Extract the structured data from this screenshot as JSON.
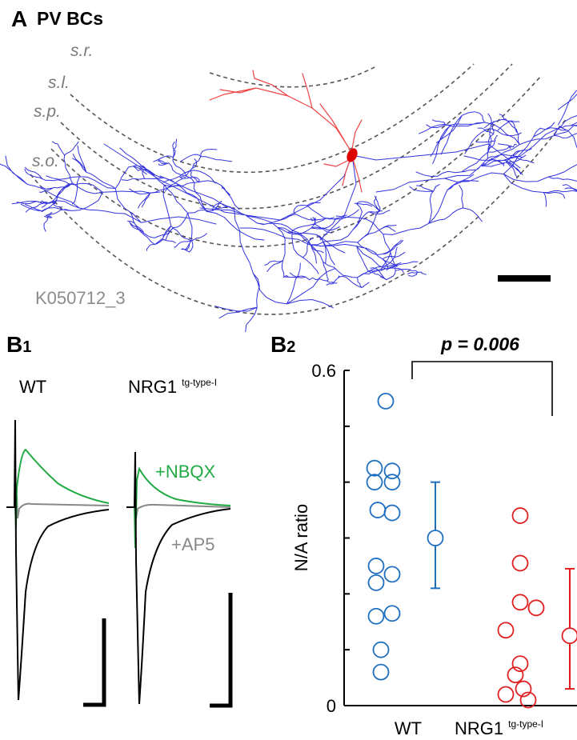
{
  "panel_a": {
    "letter": "A",
    "title": "PV BCs",
    "layers": [
      "s.r.",
      "s.l.",
      "s.p.",
      "s.o."
    ],
    "cell_id": "K050712_3",
    "colors": {
      "axon": "#3333dd",
      "dendrite": "#ee4444",
      "soma": "#dd0000"
    }
  },
  "panel_b1": {
    "letter": "B1",
    "letter_main": "B",
    "letter_sub": "1",
    "genotype_wt": "WT",
    "genotype_tg": "NRG1",
    "genotype_tg_sup": "tg-type-I",
    "label_nbqx": "+NBQX",
    "label_ap5": "+AP5",
    "colors": {
      "control": "#000000",
      "nbqx": "#22aa44",
      "ap5": "#888888"
    }
  },
  "chart_data": {
    "type": "scatter",
    "panel_letter_main": "B",
    "panel_letter_sub": "2",
    "ylabel": "N/A ratio",
    "ylim": [
      0,
      0.6
    ],
    "yticks": [
      "0",
      "0.6"
    ],
    "categories": [
      "WT",
      "NRG1"
    ],
    "category_sup": [
      "",
      "tg-type-I"
    ],
    "significance": "p = 0.006",
    "series": [
      {
        "color": "#1f6fc0",
        "points": [
          0.545,
          0.425,
          0.42,
          0.4,
          0.4,
          0.35,
          0.345,
          0.25,
          0.235,
          0.22,
          0.165,
          0.16,
          0.1,
          0.06
        ],
        "mean": 0.3,
        "error": [
          0.21,
          0.4
        ]
      },
      {
        "color": "#e02020",
        "points": [
          0.34,
          0.255,
          0.185,
          0.175,
          0.135,
          0.075,
          0.055,
          0.03,
          0.02,
          0.01
        ],
        "mean": 0.125,
        "error": [
          0.03,
          0.245
        ]
      }
    ]
  }
}
